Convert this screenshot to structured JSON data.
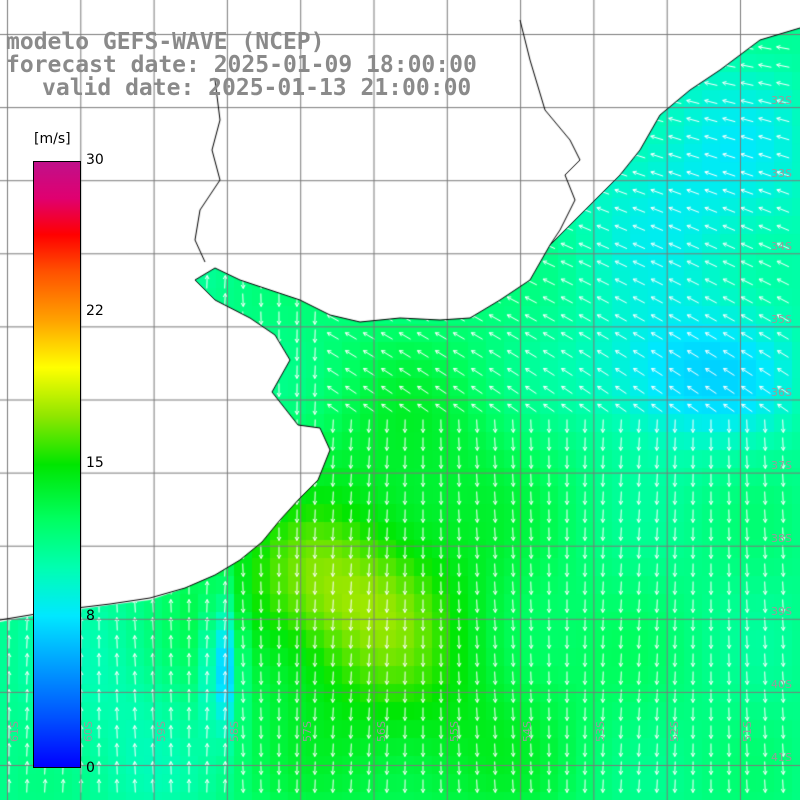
{
  "header": {
    "title": "modelo GEFS-WAVE (NCEP)",
    "forecast_date": "forecast date: 2025-01-09 18:00:00",
    "valid_date": "valid date: 2025-01-13 21:00:00"
  },
  "colorbar": {
    "unit": "[m/s]",
    "ticks": [
      "30",
      "22",
      "15",
      "8",
      "0"
    ]
  },
  "grid": {
    "lon_labels": [
      "61S",
      "60S",
      "59S",
      "58S",
      "57S",
      "56S",
      "55S",
      "54S",
      "53S",
      "52S",
      "51S"
    ],
    "lat_labels": [
      "32S",
      "33S",
      "34S",
      "35S",
      "36S",
      "37S",
      "38S",
      "39S",
      "40S",
      "41S"
    ]
  },
  "colors": {
    "land": "#ffffff",
    "grid": "#7a7a7a",
    "coast": "#000000",
    "arrows": "#ffffff",
    "header_text": "#8a8a8a"
  }
}
